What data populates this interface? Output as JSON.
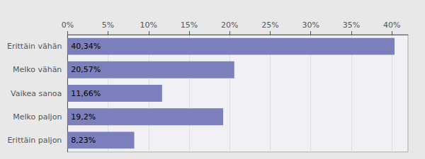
{
  "chart_data": {
    "type": "bar",
    "orientation": "horizontal",
    "categories": [
      "Erittäin vähän",
      "Melko vähän",
      "Vaikea sanoa",
      "Melko paljon",
      "Erittäin paljon"
    ],
    "values": [
      40.34,
      20.57,
      11.66,
      19.2,
      8.23
    ],
    "value_labels": [
      "40,34%",
      "20,57%",
      "11,66%",
      "19,2%",
      "8,23%"
    ],
    "data_labels": true,
    "color": "#7b7fbb",
    "xlim": [
      0,
      42
    ],
    "xticks": [
      {
        "value": 0,
        "label": "0%"
      },
      {
        "value": 5,
        "label": "5%"
      },
      {
        "value": 10,
        "label": "10%"
      },
      {
        "value": 15,
        "label": "15%"
      },
      {
        "value": 20,
        "label": "20%"
      },
      {
        "value": 25,
        "label": "25%"
      },
      {
        "value": 30,
        "label": "30%"
      },
      {
        "value": 35,
        "label": "35%"
      },
      {
        "value": 40,
        "label": "40%"
      }
    ],
    "grid": true
  }
}
